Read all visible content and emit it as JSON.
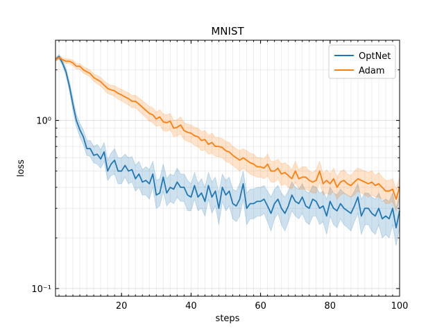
{
  "chart_data": {
    "type": "line",
    "title": "MNIST",
    "xlabel": "steps",
    "ylabel": "loss",
    "xlim": [
      1,
      100
    ],
    "ylim": [
      0.09,
      3.0
    ],
    "yscale": "log",
    "grid": true,
    "legend_position": "top-right",
    "x_ticks": [
      20,
      40,
      60,
      80,
      100
    ],
    "x_tick_labels": [
      "20",
      "40",
      "60",
      "80",
      "100"
    ],
    "y_ticks": [
      0.1,
      1
    ],
    "y_tick_labels": [
      "10⁻¹",
      "10⁰"
    ],
    "series": [
      {
        "name": "OptNet",
        "color": "#1f77b4",
        "band_color": "#1f77b4",
        "x": [
          1,
          2,
          3,
          4,
          5,
          6,
          7,
          8,
          9,
          10,
          11,
          12,
          13,
          14,
          15,
          16,
          17,
          18,
          19,
          20,
          21,
          22,
          23,
          24,
          25,
          26,
          27,
          28,
          29,
          30,
          31,
          32,
          33,
          34,
          35,
          36,
          37,
          38,
          39,
          40,
          41,
          42,
          43,
          44,
          45,
          46,
          47,
          48,
          49,
          50,
          51,
          52,
          53,
          54,
          55,
          56,
          57,
          58,
          59,
          60,
          61,
          62,
          63,
          64,
          65,
          66,
          67,
          68,
          69,
          70,
          71,
          72,
          73,
          74,
          75,
          76,
          77,
          78,
          79,
          80,
          81,
          82,
          83,
          84,
          85,
          86,
          87,
          88,
          89,
          90,
          91,
          92,
          93,
          94,
          95,
          96,
          97,
          98,
          99,
          100
        ],
        "values": [
          2.3,
          2.4,
          2.2,
          1.95,
          1.6,
          1.25,
          1.0,
          0.88,
          0.8,
          0.68,
          0.68,
          0.62,
          0.63,
          0.59,
          0.65,
          0.5,
          0.55,
          0.58,
          0.5,
          0.5,
          0.54,
          0.5,
          0.51,
          0.45,
          0.48,
          0.43,
          0.44,
          0.42,
          0.48,
          0.36,
          0.37,
          0.46,
          0.37,
          0.4,
          0.39,
          0.43,
          0.4,
          0.4,
          0.36,
          0.35,
          0.41,
          0.35,
          0.37,
          0.33,
          0.41,
          0.35,
          0.38,
          0.3,
          0.4,
          0.36,
          0.38,
          0.32,
          0.31,
          0.34,
          0.42,
          0.3,
          0.32,
          0.32,
          0.33,
          0.33,
          0.34,
          0.31,
          0.28,
          0.32,
          0.34,
          0.3,
          0.28,
          0.31,
          0.36,
          0.33,
          0.32,
          0.35,
          0.31,
          0.3,
          0.34,
          0.33,
          0.3,
          0.31,
          0.27,
          0.33,
          0.3,
          0.29,
          0.32,
          0.3,
          0.29,
          0.28,
          0.31,
          0.35,
          0.27,
          0.3,
          0.3,
          0.28,
          0.27,
          0.3,
          0.26,
          0.27,
          0.26,
          0.3,
          0.23,
          0.29
        ],
        "lower": [
          2.25,
          2.33,
          2.12,
          1.86,
          1.5,
          1.15,
          0.92,
          0.8,
          0.72,
          0.62,
          0.61,
          0.56,
          0.55,
          0.52,
          0.57,
          0.44,
          0.47,
          0.48,
          0.42,
          0.42,
          0.46,
          0.42,
          0.43,
          0.38,
          0.4,
          0.36,
          0.36,
          0.34,
          0.4,
          0.3,
          0.31,
          0.38,
          0.31,
          0.33,
          0.32,
          0.35,
          0.33,
          0.33,
          0.29,
          0.29,
          0.34,
          0.29,
          0.3,
          0.27,
          0.34,
          0.28,
          0.31,
          0.24,
          0.33,
          0.29,
          0.31,
          0.26,
          0.25,
          0.27,
          0.34,
          0.24,
          0.26,
          0.26,
          0.27,
          0.27,
          0.28,
          0.25,
          0.22,
          0.26,
          0.28,
          0.24,
          0.22,
          0.25,
          0.29,
          0.27,
          0.26,
          0.28,
          0.25,
          0.24,
          0.27,
          0.27,
          0.24,
          0.25,
          0.21,
          0.27,
          0.24,
          0.23,
          0.26,
          0.24,
          0.23,
          0.22,
          0.25,
          0.28,
          0.21,
          0.24,
          0.24,
          0.22,
          0.21,
          0.24,
          0.2,
          0.21,
          0.2,
          0.24,
          0.18,
          0.23
        ],
        "upper": [
          2.35,
          2.47,
          2.3,
          2.05,
          1.72,
          1.36,
          1.09,
          0.96,
          0.88,
          0.76,
          0.76,
          0.7,
          0.72,
          0.67,
          0.74,
          0.58,
          0.64,
          0.68,
          0.6,
          0.6,
          0.63,
          0.6,
          0.61,
          0.54,
          0.57,
          0.51,
          0.53,
          0.51,
          0.57,
          0.44,
          0.45,
          0.55,
          0.45,
          0.48,
          0.47,
          0.52,
          0.48,
          0.48,
          0.44,
          0.42,
          0.49,
          0.42,
          0.45,
          0.4,
          0.49,
          0.43,
          0.46,
          0.37,
          0.48,
          0.44,
          0.46,
          0.39,
          0.38,
          0.42,
          0.5,
          0.37,
          0.39,
          0.39,
          0.4,
          0.4,
          0.41,
          0.38,
          0.35,
          0.39,
          0.41,
          0.37,
          0.35,
          0.38,
          0.43,
          0.4,
          0.39,
          0.42,
          0.38,
          0.37,
          0.41,
          0.4,
          0.37,
          0.38,
          0.34,
          0.4,
          0.37,
          0.36,
          0.39,
          0.37,
          0.36,
          0.35,
          0.38,
          0.42,
          0.34,
          0.37,
          0.37,
          0.35,
          0.34,
          0.37,
          0.33,
          0.34,
          0.33,
          0.37,
          0.3,
          0.36
        ]
      },
      {
        "name": "Adam",
        "color": "#ff7f0e",
        "band_color": "#ff7f0e",
        "x": [
          1,
          2,
          3,
          4,
          5,
          6,
          7,
          8,
          9,
          10,
          11,
          12,
          13,
          14,
          15,
          16,
          17,
          18,
          19,
          20,
          21,
          22,
          23,
          24,
          25,
          26,
          27,
          28,
          29,
          30,
          31,
          32,
          33,
          34,
          35,
          36,
          37,
          38,
          39,
          40,
          41,
          42,
          43,
          44,
          45,
          46,
          47,
          48,
          49,
          50,
          51,
          52,
          53,
          54,
          55,
          56,
          57,
          58,
          59,
          60,
          61,
          62,
          63,
          64,
          65,
          66,
          67,
          68,
          69,
          70,
          71,
          72,
          73,
          74,
          75,
          76,
          77,
          78,
          79,
          80,
          81,
          82,
          83,
          84,
          85,
          86,
          87,
          88,
          89,
          90,
          91,
          92,
          93,
          94,
          95,
          96,
          97,
          98,
          99,
          100
        ],
        "values": [
          2.3,
          2.37,
          2.3,
          2.25,
          2.25,
          2.2,
          2.1,
          2.1,
          2.0,
          1.95,
          1.9,
          1.8,
          1.75,
          1.7,
          1.62,
          1.55,
          1.52,
          1.5,
          1.45,
          1.42,
          1.38,
          1.35,
          1.3,
          1.3,
          1.25,
          1.2,
          1.15,
          1.1,
          1.08,
          1.02,
          1.05,
          0.98,
          0.97,
          0.99,
          0.9,
          0.91,
          0.94,
          0.87,
          0.85,
          0.84,
          0.81,
          0.8,
          0.76,
          0.77,
          0.72,
          0.74,
          0.7,
          0.7,
          0.69,
          0.66,
          0.65,
          0.62,
          0.6,
          0.58,
          0.6,
          0.58,
          0.56,
          0.55,
          0.53,
          0.53,
          0.52,
          0.55,
          0.5,
          0.5,
          0.52,
          0.48,
          0.49,
          0.47,
          0.45,
          0.5,
          0.45,
          0.46,
          0.46,
          0.44,
          0.43,
          0.44,
          0.5,
          0.42,
          0.44,
          0.42,
          0.45,
          0.4,
          0.43,
          0.44,
          0.42,
          0.41,
          0.43,
          0.45,
          0.44,
          0.43,
          0.42,
          0.43,
          0.41,
          0.42,
          0.4,
          0.38,
          0.38,
          0.39,
          0.34,
          0.4
        ],
        "lower": [
          2.25,
          2.31,
          2.24,
          2.18,
          2.18,
          2.12,
          2.02,
          2.02,
          1.91,
          1.86,
          1.81,
          1.71,
          1.65,
          1.6,
          1.52,
          1.45,
          1.42,
          1.39,
          1.34,
          1.31,
          1.27,
          1.24,
          1.19,
          1.19,
          1.14,
          1.09,
          1.04,
          0.99,
          0.97,
          0.92,
          0.94,
          0.87,
          0.86,
          0.88,
          0.8,
          0.81,
          0.83,
          0.77,
          0.75,
          0.74,
          0.71,
          0.7,
          0.66,
          0.67,
          0.63,
          0.64,
          0.61,
          0.61,
          0.6,
          0.57,
          0.56,
          0.54,
          0.52,
          0.5,
          0.52,
          0.5,
          0.48,
          0.47,
          0.46,
          0.46,
          0.45,
          0.47,
          0.43,
          0.43,
          0.45,
          0.41,
          0.42,
          0.4,
          0.39,
          0.43,
          0.39,
          0.39,
          0.39,
          0.38,
          0.37,
          0.37,
          0.43,
          0.36,
          0.37,
          0.36,
          0.38,
          0.34,
          0.36,
          0.37,
          0.36,
          0.35,
          0.36,
          0.38,
          0.37,
          0.36,
          0.35,
          0.36,
          0.35,
          0.35,
          0.34,
          0.32,
          0.32,
          0.33,
          0.29,
          0.34
        ],
        "upper": [
          2.35,
          2.43,
          2.36,
          2.32,
          2.32,
          2.28,
          2.18,
          2.18,
          2.09,
          2.04,
          1.99,
          1.89,
          1.85,
          1.8,
          1.72,
          1.65,
          1.62,
          1.61,
          1.56,
          1.53,
          1.49,
          1.46,
          1.41,
          1.41,
          1.36,
          1.31,
          1.26,
          1.21,
          1.19,
          1.12,
          1.16,
          1.09,
          1.08,
          1.1,
          1.0,
          1.01,
          1.05,
          0.97,
          0.95,
          0.94,
          0.91,
          0.9,
          0.86,
          0.87,
          0.81,
          0.84,
          0.79,
          0.79,
          0.78,
          0.75,
          0.74,
          0.7,
          0.68,
          0.66,
          0.68,
          0.66,
          0.64,
          0.63,
          0.6,
          0.6,
          0.59,
          0.63,
          0.57,
          0.57,
          0.59,
          0.55,
          0.56,
          0.54,
          0.51,
          0.57,
          0.51,
          0.53,
          0.53,
          0.5,
          0.49,
          0.51,
          0.57,
          0.48,
          0.51,
          0.48,
          0.52,
          0.46,
          0.5,
          0.51,
          0.48,
          0.47,
          0.5,
          0.52,
          0.51,
          0.5,
          0.49,
          0.5,
          0.47,
          0.49,
          0.46,
          0.44,
          0.44,
          0.45,
          0.39,
          0.46
        ]
      }
    ]
  }
}
